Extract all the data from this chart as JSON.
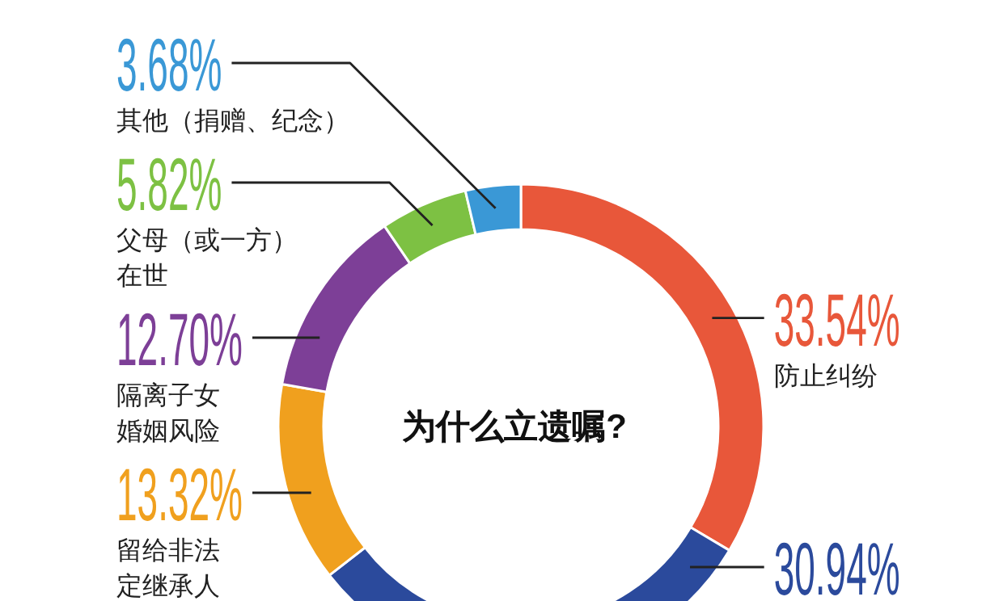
{
  "chart_data": {
    "type": "donut",
    "title": "为什么立遗嘱?",
    "categories": [
      "防止纠纷",
      null,
      "留给非法定继承人",
      "隔离子女婚姻风险",
      "父母（或一方）在世",
      "其他（捐赠、纪念）"
    ],
    "values": [
      33.54,
      30.94,
      13.32,
      12.7,
      5.82,
      3.68
    ],
    "value_labels": [
      "33.54%",
      "30.94%",
      "13.32%",
      "12.70%",
      "5.82%",
      "3.68%"
    ],
    "colors": [
      "#e8573a",
      "#2b4a9c",
      "#f0a01e",
      "#7d3f97",
      "#7dc143",
      "#3a98d6"
    ]
  }
}
